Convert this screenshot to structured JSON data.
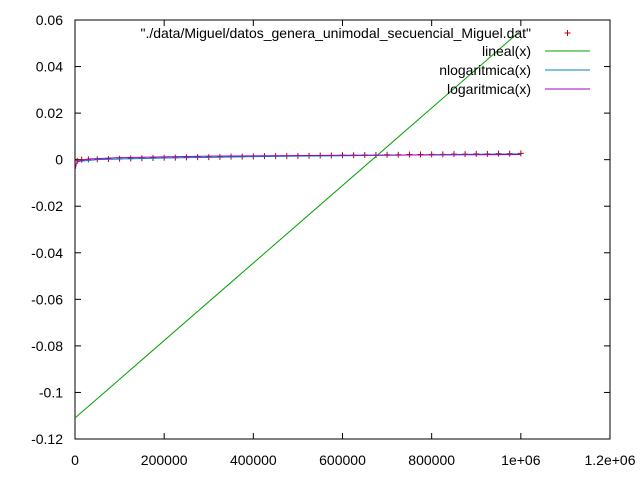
{
  "chart_data": {
    "type": "line",
    "title": "",
    "xlabel": "",
    "ylabel": "",
    "xlim": [
      0,
      1200000
    ],
    "ylim": [
      -0.12,
      0.06
    ],
    "x_ticks": [
      0,
      200000,
      400000,
      600000,
      800000,
      1000000,
      1200000
    ],
    "x_tick_labels": [
      "0",
      "200000",
      "400000",
      "600000",
      "800000",
      "1e+06",
      "1.2e+06"
    ],
    "y_ticks": [
      -0.12,
      -0.1,
      -0.08,
      -0.06,
      -0.04,
      -0.02,
      0,
      0.02,
      0.04,
      0.06
    ],
    "y_tick_labels": [
      "-0.12",
      "-0.1",
      "-0.08",
      "-0.06",
      "-0.04",
      "-0.02",
      "0",
      "0.02",
      "0.04",
      "0.06"
    ],
    "grid": false,
    "legend_position": "top-right",
    "series": [
      {
        "name": "\"./data/Miguel/datos_genera_unimodal_secuencial_Miguel.dat\"",
        "style": "points",
        "marker": "+",
        "color": "#c00000",
        "x": [
          5000,
          15000,
          30000,
          50000,
          75000,
          100000,
          125000,
          150000,
          175000,
          200000,
          225000,
          250000,
          275000,
          300000,
          325000,
          350000,
          375000,
          400000,
          425000,
          450000,
          475000,
          500000,
          525000,
          550000,
          575000,
          600000,
          625000,
          650000,
          675000,
          700000,
          725000,
          750000,
          775000,
          800000,
          825000,
          850000,
          875000,
          900000,
          925000,
          950000,
          975000,
          1000000
        ],
        "y": [
          -0.0005,
          0.0,
          0.0001,
          0.0002,
          0.0003,
          0.0004,
          0.0005,
          0.0006,
          0.0007,
          0.0008,
          0.0009,
          0.001,
          0.0011,
          0.0011,
          0.0012,
          0.0013,
          0.0013,
          0.0014,
          0.0015,
          0.0015,
          0.0016,
          0.0016,
          0.0017,
          0.0018,
          0.0018,
          0.0019,
          0.0019,
          0.002,
          0.002,
          0.0021,
          0.0021,
          0.0022,
          0.0022,
          0.0023,
          0.0023,
          0.0024,
          0.0024,
          0.0025,
          0.0025,
          0.0026,
          0.0026,
          0.0027
        ]
      },
      {
        "name": "lineal(x)",
        "style": "line",
        "color": "#00a000",
        "x": [
          0,
          1000000
        ],
        "y": [
          -0.111,
          0.0555
        ]
      },
      {
        "name": "nlogaritmica(x)",
        "style": "line",
        "color": "#0080c0",
        "x": [
          5000,
          50000,
          100000,
          200000,
          300000,
          400000,
          500000,
          600000,
          700000,
          800000,
          900000,
          1000000
        ],
        "y": [
          -0.0008,
          0.0,
          0.0003,
          0.0007,
          0.001,
          0.0013,
          0.0015,
          0.0017,
          0.0019,
          0.0021,
          0.0023,
          0.0025
        ]
      },
      {
        "name": "logaritmica(x)",
        "style": "line",
        "color": "#a000c0",
        "x": [
          1000,
          3000,
          10000,
          30000,
          100000,
          300000,
          600000,
          1000000
        ],
        "y": [
          -0.004,
          -0.0015,
          -0.0005,
          0.0003,
          0.0009,
          0.0015,
          0.0019,
          0.0022
        ]
      }
    ]
  }
}
